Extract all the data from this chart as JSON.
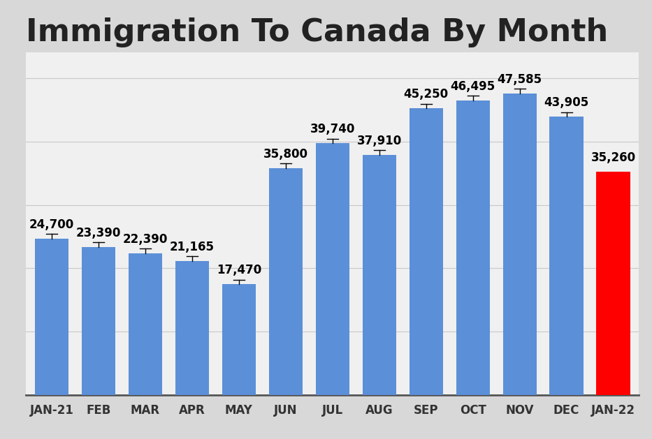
{
  "title": "Immigration To Canada By Month",
  "categories": [
    "JAN-21",
    "FEB",
    "MAR",
    "APR",
    "MAY",
    "JUN",
    "JUL",
    "AUG",
    "SEP",
    "OCT",
    "NOV",
    "DEC",
    "JAN-22"
  ],
  "values": [
    24700,
    23390,
    22390,
    21165,
    17470,
    35800,
    39740,
    37910,
    45250,
    46495,
    47585,
    43905,
    35260
  ],
  "bar_colors": [
    "#5b8fd8",
    "#5b8fd8",
    "#5b8fd8",
    "#5b8fd8",
    "#5b8fd8",
    "#5b8fd8",
    "#5b8fd8",
    "#5b8fd8",
    "#5b8fd8",
    "#5b8fd8",
    "#5b8fd8",
    "#5b8fd8",
    "#ff0000"
  ],
  "background_color": "#d8d8d8",
  "plot_bg_color": "#f0f0f0",
  "title_fontsize": 32,
  "label_fontsize": 12,
  "tick_fontsize": 12,
  "ylim": [
    0,
    54000
  ],
  "error_bars": [
    true,
    true,
    true,
    true,
    true,
    true,
    true,
    true,
    true,
    true,
    true,
    true,
    false
  ],
  "error_value": 700,
  "gridlines_y": [
    10000,
    20000,
    30000,
    40000,
    50000
  ],
  "bar_width": 0.72
}
